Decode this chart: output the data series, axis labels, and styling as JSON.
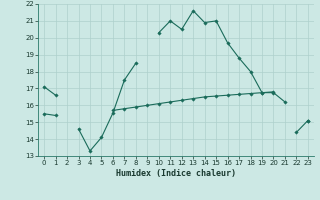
{
  "xlabel": "Humidex (Indice chaleur)",
  "x": [
    0,
    1,
    2,
    3,
    4,
    5,
    6,
    7,
    8,
    9,
    10,
    11,
    12,
    13,
    14,
    15,
    16,
    17,
    18,
    19,
    20,
    21,
    22,
    23
  ],
  "line1": [
    17.1,
    16.6,
    null,
    null,
    null,
    null,
    null,
    null,
    null,
    null,
    20.3,
    21.0,
    20.5,
    21.6,
    20.9,
    21.0,
    19.7,
    18.8,
    18.0,
    16.75,
    16.75,
    16.2,
    null,
    15.1
  ],
  "line2": [
    15.5,
    15.4,
    null,
    null,
    null,
    null,
    15.7,
    15.8,
    15.9,
    16.0,
    16.1,
    16.2,
    16.3,
    16.4,
    16.5,
    16.55,
    16.6,
    16.65,
    16.7,
    16.75,
    16.8,
    null,
    null,
    null
  ],
  "line3": [
    null,
    null,
    null,
    14.6,
    13.3,
    14.1,
    15.55,
    17.5,
    18.5,
    null,
    null,
    null,
    null,
    null,
    null,
    null,
    null,
    null,
    null,
    null,
    null,
    null,
    14.4,
    15.1
  ],
  "line_color": "#1a6b5a",
  "bg_color": "#cce8e4",
  "grid_color": "#aed0cc",
  "ylim": [
    13,
    22
  ],
  "xlim": [
    -0.5,
    23.5
  ]
}
